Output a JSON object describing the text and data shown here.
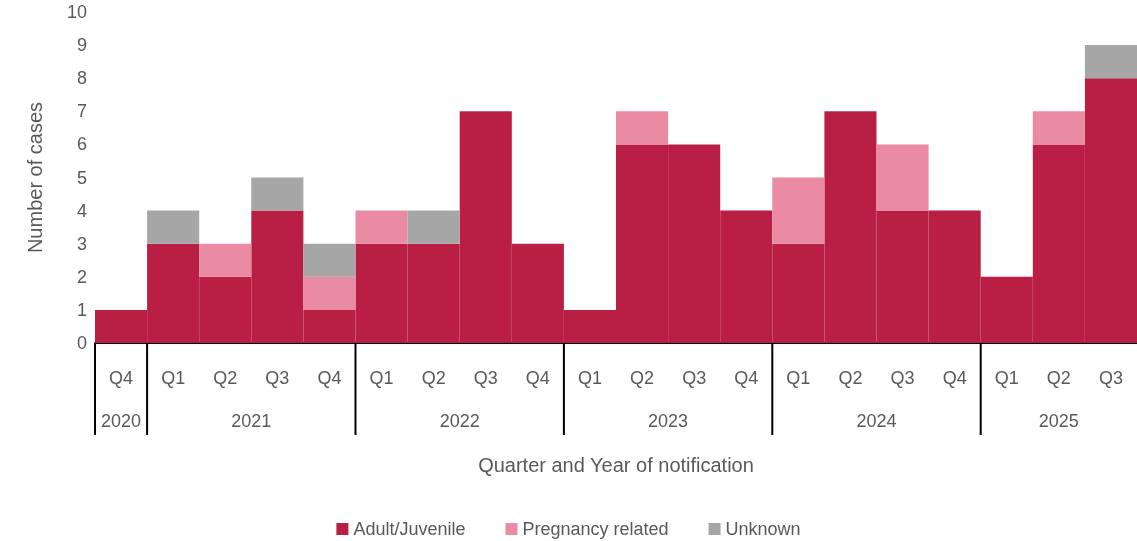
{
  "chart_data": {
    "type": "bar",
    "stacked": true,
    "xlabel": "Quarter and Year of notification",
    "ylabel": "Number of cases",
    "categories": [
      "Q4",
      "Q1",
      "Q2",
      "Q3",
      "Q4",
      "Q1",
      "Q2",
      "Q3",
      "Q4",
      "Q1",
      "Q2",
      "Q3",
      "Q4",
      "Q1",
      "Q2",
      "Q3",
      "Q4",
      "Q1",
      "Q2",
      "Q3"
    ],
    "annotations": [
      "2020",
      "2021",
      "2022",
      "2023",
      "2024",
      "2025"
    ],
    "series": [
      {
        "name": "Adult/Juvenile",
        "color": "#b91f45",
        "values": [
          1,
          3,
          2,
          4,
          1,
          3,
          3,
          7,
          3,
          1,
          6,
          6,
          4,
          3,
          7,
          4,
          4,
          2,
          6,
          8
        ]
      },
      {
        "name": "Pregnancy related",
        "color": "#ea8aa3",
        "values": [
          0,
          0,
          1,
          0,
          1,
          1,
          0,
          0,
          0,
          0,
          1,
          0,
          0,
          2,
          0,
          2,
          0,
          0,
          1,
          0
        ]
      },
      {
        "name": "Unknown",
        "color": "#a6a6a6",
        "values": [
          0,
          1,
          0,
          1,
          1,
          0,
          1,
          0,
          0,
          0,
          0,
          0,
          0,
          0,
          0,
          0,
          0,
          0,
          0,
          1
        ]
      }
    ],
    "ylim": [
      0,
      10
    ],
    "yticks": [
      0,
      1,
      2,
      3,
      4,
      5,
      6,
      7,
      8,
      9,
      10
    ],
    "grid": false,
    "legend": "bottom"
  }
}
